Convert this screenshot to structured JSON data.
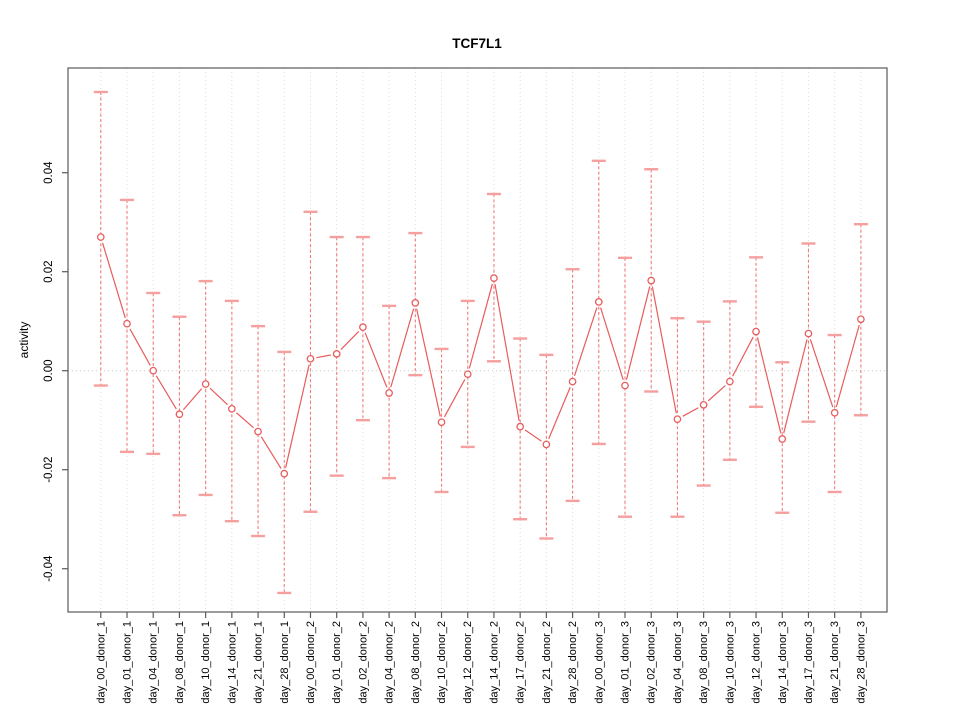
{
  "chart_data": {
    "type": "line",
    "title": "TCF7L1",
    "xlabel": "",
    "ylabel": "activity",
    "legend": "none",
    "grid": "vertical-dotted-gridlines",
    "zero_reference_line": true,
    "marker": "open-circle",
    "error_bars": "dashed-vertical-with-caps",
    "yticks": [
      -0.04,
      -0.02,
      0.0,
      0.02,
      0.04
    ],
    "ytick_labels": [
      "-0.04",
      "-0.02",
      "0.00",
      "0.02",
      "0.04"
    ],
    "ylim": [
      -0.0489,
      0.0603
    ],
    "categories": [
      "day_00_donor_1",
      "day_01_donor_1",
      "day_04_donor_1",
      "day_08_donor_1",
      "day_10_donor_1",
      "day_14_donor_1",
      "day_21_donor_1",
      "day_28_donor_1",
      "day_00_donor_2",
      "day_01_donor_2",
      "day_02_donor_2",
      "day_04_donor_2",
      "day_08_donor_2",
      "day_10_donor_2",
      "day_12_donor_2",
      "day_14_donor_2",
      "day_17_donor_2",
      "day_21_donor_2",
      "day_28_donor_2",
      "day_00_donor_3",
      "day_01_donor_3",
      "day_02_donor_3",
      "day_04_donor_3",
      "day_08_donor_3",
      "day_10_donor_3",
      "day_12_donor_3",
      "day_14_donor_3",
      "day_17_donor_3",
      "day_21_donor_3",
      "day_28_donor_3"
    ],
    "series": [
      {
        "name": "activity",
        "values": [
          0.027,
          0.0095,
          0.0,
          -0.0088,
          -0.0027,
          -0.0077,
          -0.0123,
          -0.0208,
          0.0024,
          0.0034,
          0.0088,
          -0.0045,
          0.0137,
          -0.0104,
          -0.0007,
          0.0187,
          -0.0113,
          -0.0149,
          -0.0022,
          0.0139,
          -0.003,
          0.0182,
          -0.0098,
          -0.0069,
          -0.0022,
          0.0079,
          -0.0138,
          0.0075,
          -0.0085,
          0.0104
        ],
        "upper": [
          0.0563,
          0.0345,
          0.0157,
          0.0109,
          0.0181,
          0.0141,
          0.009,
          0.0038,
          0.0321,
          0.027,
          0.027,
          0.0131,
          0.0278,
          0.0044,
          0.0141,
          0.0357,
          0.0065,
          0.0032,
          0.0205,
          0.0424,
          0.0228,
          0.0407,
          0.0106,
          0.0099,
          0.014,
          0.0229,
          0.0017,
          0.0257,
          0.0072,
          0.0296
        ],
        "lower": [
          -0.003,
          -0.0164,
          -0.0168,
          -0.0292,
          -0.0251,
          -0.0304,
          -0.0334,
          -0.0449,
          -0.0285,
          -0.0212,
          -0.01,
          -0.0217,
          -0.0009,
          -0.0245,
          -0.0154,
          0.0019,
          -0.03,
          -0.0339,
          -0.0263,
          -0.0148,
          -0.0295,
          -0.0042,
          -0.0295,
          -0.0232,
          -0.018,
          -0.0073,
          -0.0287,
          -0.0103,
          -0.0245,
          -0.009
        ]
      }
    ],
    "colors": {
      "line": "#e85c5c",
      "marker_stroke": "#e85c5c",
      "marker_fill": "#ffffff",
      "error_bar": "#f17c7c",
      "error_cap": "#f59f9f",
      "gridline": "#dcdcdc",
      "zero_line": "#cccccc",
      "axis_box": "#595959",
      "text": "#000000",
      "background": "#ffffff"
    }
  }
}
